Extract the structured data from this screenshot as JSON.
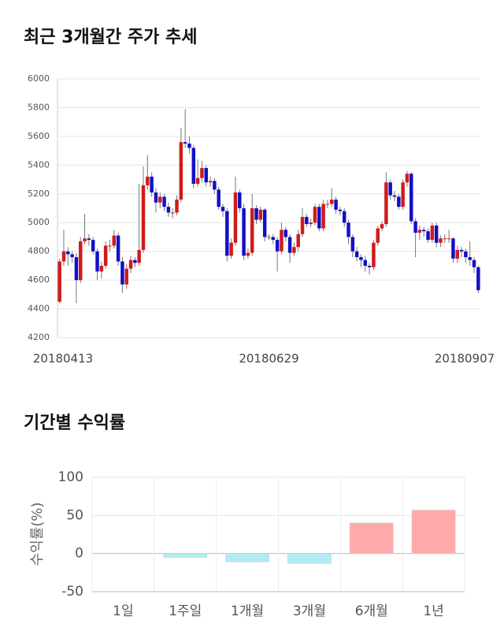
{
  "chart_data": [
    {
      "type": "candlestick",
      "title": "최근 3개월간 주가 추세",
      "categories": [
        "20180413",
        null,
        null,
        null,
        null,
        null,
        null,
        null,
        null,
        null,
        null,
        null,
        null,
        null,
        null,
        null,
        null,
        null,
        null,
        null,
        null,
        null,
        null,
        null,
        null,
        null,
        null,
        null,
        null,
        null,
        null,
        null,
        null,
        null,
        null,
        null,
        null,
        null,
        null,
        null,
        null,
        null,
        null,
        null,
        null,
        null,
        null,
        null,
        null,
        null,
        "20180629",
        null,
        null,
        null,
        null,
        null,
        null,
        null,
        null,
        null,
        null,
        null,
        null,
        null,
        null,
        null,
        null,
        null,
        null,
        null,
        null,
        null,
        null,
        null,
        null,
        null,
        null,
        null,
        null,
        null,
        null,
        null,
        null,
        null,
        null,
        null,
        null,
        null,
        null,
        null,
        null,
        null,
        null,
        null,
        null,
        null,
        null,
        null,
        null,
        null,
        "20180907"
      ],
      "open": [
        4450,
        4730,
        4800,
        4780,
        4760,
        4600,
        4870,
        4890,
        4880,
        4800,
        4660,
        4700,
        4840,
        4840,
        4910,
        4730,
        4570,
        4680,
        4740,
        4720,
        4810,
        5260,
        5320,
        5210,
        5140,
        5180,
        5110,
        5070,
        5070,
        5160,
        5560,
        5550,
        5520,
        5270,
        5310,
        5380,
        5280,
        5290,
        5230,
        5110,
        5080,
        4770,
        4860,
        5210,
        5100,
        4770,
        4790,
        5100,
        5020,
        5090,
        4900,
        4900,
        4880,
        4800,
        4950,
        4900,
        4790,
        4830,
        4920,
        5040,
        4990,
        5000,
        5110,
        4960,
        5130,
        5130,
        5160,
        5090,
        5080,
        5000,
        4900,
        4800,
        4760,
        4740,
        4700,
        4690,
        4860,
        4960,
        4990,
        5280,
        5190,
        5180,
        5110,
        5280,
        5340,
        5010,
        4930,
        4950,
        4940,
        4880,
        4980,
        4860,
        4890,
        4890,
        4890,
        4750,
        4810,
        4800,
        4760,
        4740,
        4690
      ],
      "high": [
        4750,
        4950,
        4830,
        4800,
        4790,
        4900,
        5060,
        4920,
        4900,
        4820,
        4730,
        4870,
        4880,
        4950,
        4930,
        4760,
        4710,
        4770,
        4760,
        5270,
        5390,
        5470,
        5350,
        5240,
        5210,
        5200,
        5140,
        5100,
        5190,
        5660,
        5790,
        5600,
        5540,
        5440,
        5430,
        5400,
        5320,
        5310,
        5250,
        5130,
        5100,
        4890,
        5320,
        5230,
        5130,
        4820,
        5200,
        5120,
        5110,
        5100,
        4920,
        4920,
        4900,
        5000,
        4970,
        4920,
        4860,
        4950,
        5100,
        5060,
        5030,
        5130,
        5130,
        5160,
        5160,
        5240,
        5180,
        5110,
        5100,
        5020,
        4920,
        4830,
        4780,
        4770,
        4720,
        4880,
        4980,
        5010,
        5350,
        5300,
        5220,
        5200,
        5300,
        5360,
        5350,
        5030,
        4980,
        4970,
        4960,
        5000,
        5000,
        4910,
        4920,
        4950,
        4900,
        4840,
        4830,
        4820,
        4870,
        4760,
        4700
      ],
      "low": [
        4440,
        4700,
        4700,
        4720,
        4440,
        4580,
        4850,
        4840,
        4780,
        4600,
        4610,
        4680,
        4800,
        4820,
        4700,
        4510,
        4540,
        4650,
        4690,
        4700,
        4790,
        5230,
        5180,
        5070,
        5100,
        5080,
        5040,
        5030,
        5050,
        5140,
        5520,
        5480,
        5240,
        5250,
        5280,
        5250,
        5250,
        5200,
        5090,
        5040,
        4730,
        4750,
        4840,
        5070,
        4740,
        4750,
        4770,
        4990,
        5000,
        4870,
        4880,
        4850,
        4660,
        4780,
        4870,
        4720,
        4770,
        4800,
        4900,
        4970,
        4970,
        4980,
        4940,
        4940,
        5100,
        5110,
        5060,
        5050,
        4970,
        4850,
        4760,
        4730,
        4690,
        4660,
        4640,
        4670,
        4840,
        4940,
        4970,
        5160,
        5150,
        5090,
        5090,
        5250,
        4990,
        4760,
        4880,
        4900,
        4860,
        4860,
        4830,
        4830,
        4860,
        4860,
        4720,
        4720,
        4760,
        4720,
        4700,
        4650,
        4510
      ],
      "close": [
        4730,
        4800,
        4780,
        4760,
        4600,
        4870,
        4890,
        4880,
        4800,
        4660,
        4700,
        4840,
        4840,
        4910,
        4730,
        4570,
        4680,
        4740,
        4720,
        4810,
        5260,
        5320,
        5210,
        5140,
        5180,
        5110,
        5070,
        5070,
        5160,
        5560,
        5550,
        5520,
        5270,
        5310,
        5380,
        5280,
        5290,
        5230,
        5110,
        5080,
        4770,
        4860,
        5210,
        5100,
        4770,
        4790,
        5100,
        5020,
        5090,
        4900,
        4900,
        4880,
        4800,
        4950,
        4900,
        4790,
        4830,
        4920,
        5040,
        4990,
        5000,
        5110,
        4960,
        5130,
        5130,
        5160,
        5090,
        5080,
        5000,
        4900,
        4800,
        4760,
        4740,
        4700,
        4690,
        4860,
        4960,
        4990,
        5280,
        5190,
        5180,
        5110,
        5280,
        5340,
        5010,
        4930,
        4950,
        4940,
        4880,
        4980,
        4860,
        4890,
        4890,
        4890,
        4750,
        4810,
        4800,
        4760,
        4740,
        4690,
        4530
      ],
      "up_color": "#d11a1a",
      "down_color": "#1010c8",
      "ylim": [
        4200,
        6000
      ],
      "yticks": [
        4200,
        4400,
        4600,
        4800,
        5000,
        5200,
        5400,
        5600,
        5800,
        6000
      ],
      "grid": true
    },
    {
      "type": "bar",
      "title": "기간별 수익률",
      "ylabel": "수익률(%)",
      "categories": [
        "1일",
        "1주일",
        "1개월",
        "3개월",
        "6개월",
        "1년"
      ],
      "values": [
        0,
        -5,
        -11,
        -13,
        40,
        57
      ],
      "colors": [
        "#b2ebf2",
        "#b2ebf2",
        "#b2ebf2",
        "#b2ebf2",
        "#ffaaaa",
        "#ffaaaa"
      ],
      "ylim": [
        -50,
        100
      ],
      "yticks": [
        -50,
        0,
        50,
        100
      ],
      "grid": true
    }
  ]
}
